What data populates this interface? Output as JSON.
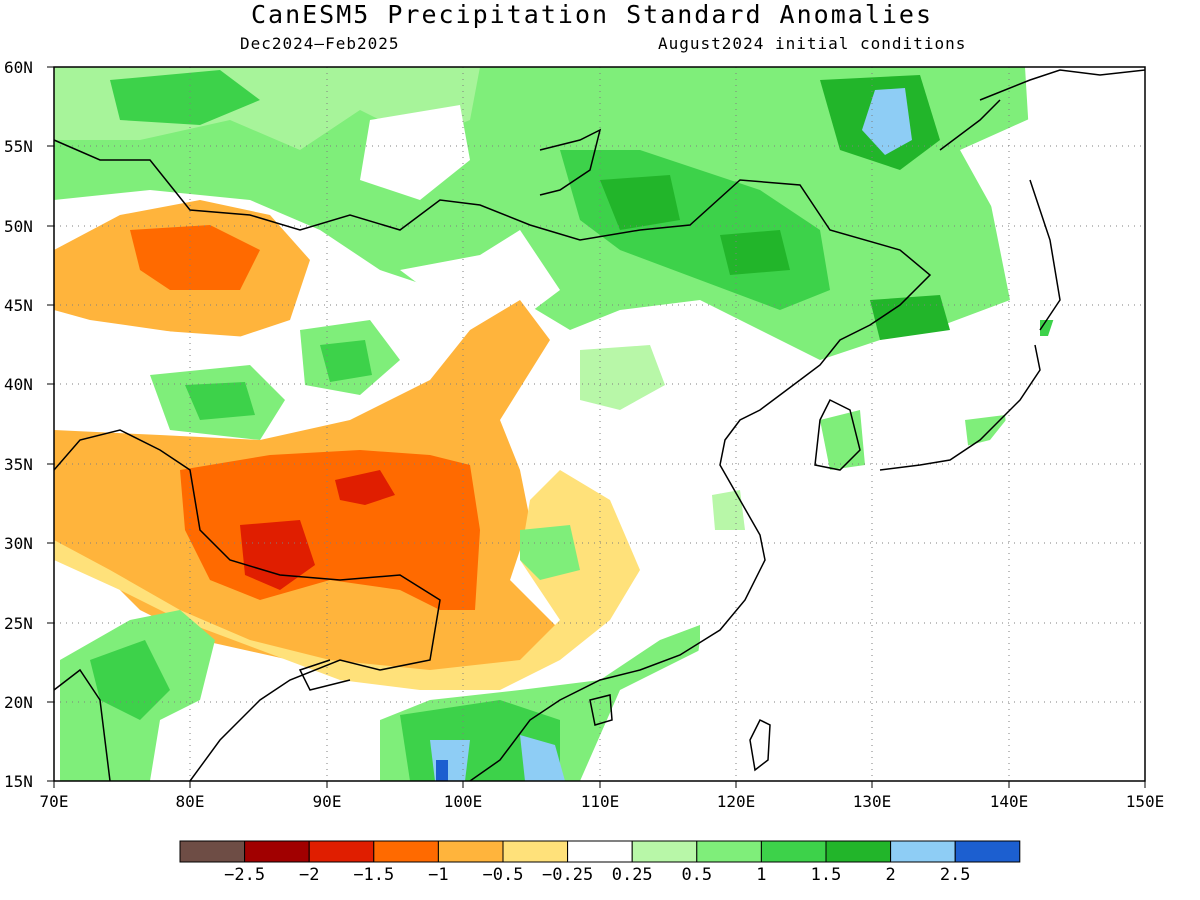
{
  "title": "CanESM5 Precipitation Standard Anomalies",
  "period": "Dec2024–Feb2025",
  "init": "August2024 initial conditions",
  "lat_labels": [
    "60N",
    "55N",
    "50N",
    "45N",
    "40N",
    "35N",
    "30N",
    "25N",
    "20N",
    "15N"
  ],
  "lon_labels": [
    "70E",
    "80E",
    "90E",
    "100E",
    "110E",
    "120E",
    "130E",
    "140E",
    "150E"
  ],
  "legend": {
    "colors": [
      "#6e4d45",
      "#a10000",
      "#e01e00",
      "#ff6a00",
      "#ffb43c",
      "#ffe17a",
      "#ffffff",
      "#b8f7a8",
      "#7fee7a",
      "#3dd24a",
      "#22b52a",
      "#8ecdf5",
      "#1c5fd0"
    ],
    "labels": [
      "−2.5",
      "−2",
      "−1.5",
      "−1",
      "−0.5",
      "−0.25",
      "0.25",
      "0.5",
      "1",
      "1.5",
      "2",
      "2.5"
    ]
  }
}
